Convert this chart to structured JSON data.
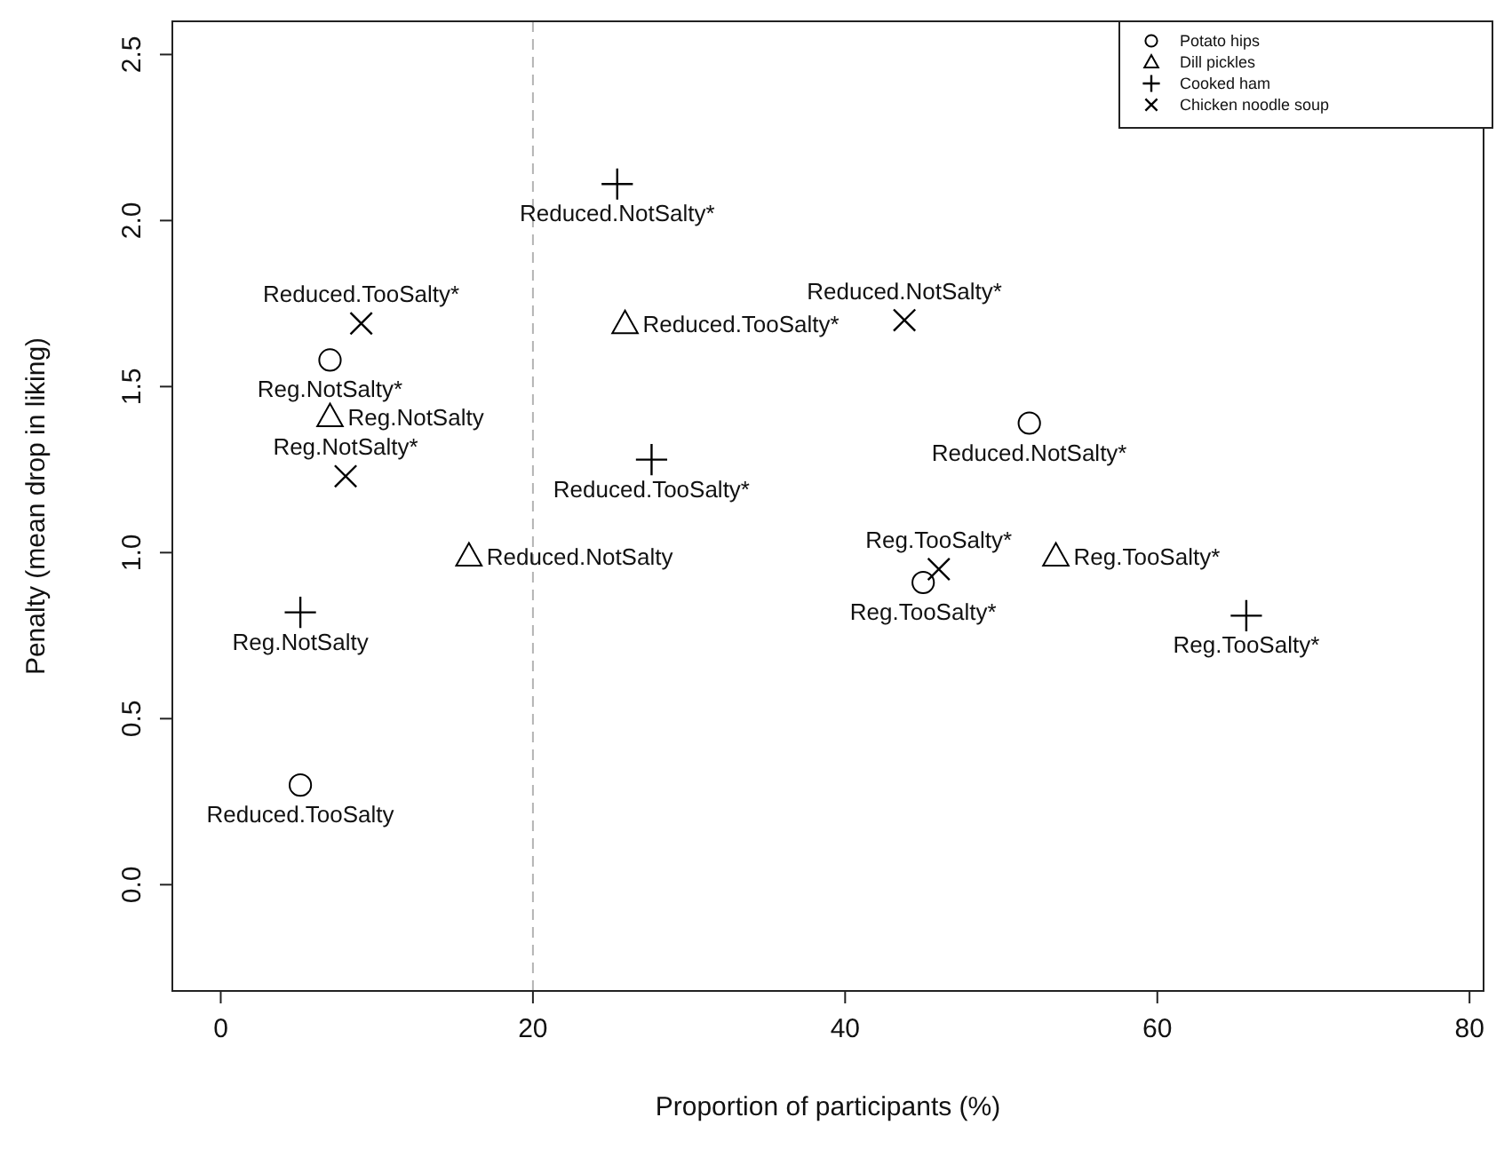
{
  "chart_data": {
    "type": "scatter",
    "xlabel": "Proportion of participants (%)",
    "ylabel": "Penalty (mean drop in liking)",
    "xlim": [
      -3.1,
      80.9
    ],
    "ylim": [
      -0.32,
      2.6
    ],
    "xticks": [
      0,
      20,
      40,
      60,
      80
    ],
    "yticks": [
      {
        "value": 0,
        "label": "0.0"
      },
      {
        "value": 0.5,
        "label": "0.5"
      },
      {
        "value": 1,
        "label": "1.0"
      },
      {
        "value": 1.5,
        "label": "1.5"
      },
      {
        "value": 2,
        "label": "2.0"
      },
      {
        "value": 2.5,
        "label": "2.5"
      }
    ],
    "grid": false,
    "legend": "top right",
    "ref_lines": [
      {
        "axis": "x",
        "value": 20,
        "color": "#b4b4b4",
        "line_style": "dashed"
      }
    ],
    "series": [
      {
        "name": "Potato hips",
        "color": "#000000",
        "marker": "circle",
        "x": [
          7.0,
          5.1,
          51.8,
          45.0
        ],
        "values": [
          1.58,
          0.3,
          1.39,
          0.91
        ]
      },
      {
        "name": "Dill pickles",
        "color": "#000000",
        "marker": "triangle",
        "x": [
          7.0,
          15.9,
          25.9,
          53.5
        ],
        "values": [
          1.41,
          0.99,
          1.69,
          0.99
        ]
      },
      {
        "name": "Cooked ham",
        "color": "#000000",
        "marker": "cross",
        "x": [
          25.4,
          27.6,
          5.1,
          65.7
        ],
        "values": [
          2.11,
          1.28,
          0.82,
          0.81
        ]
      },
      {
        "name": "Chicken noodle soup",
        "color": "#000000",
        "marker": "x",
        "x": [
          9.0,
          8.0,
          43.8,
          46.0
        ],
        "values": [
          1.69,
          1.23,
          1.7,
          0.95
        ]
      }
    ],
    "annotations": [
      {
        "text": "Reg.NotSalty*",
        "x": 7.0,
        "y": 1.58
      },
      {
        "text": "Reduced.TooSalty",
        "x": 5.1,
        "y": 0.3
      },
      {
        "text": "Reduced.NotSalty*",
        "x": 51.8,
        "y": 1.39
      },
      {
        "text": "Reg.TooSalty*",
        "x": 45.0,
        "y": 0.91
      },
      {
        "text": "Reg.NotSalty",
        "x": 7.0,
        "y": 1.41
      },
      {
        "text": "Reduced.NotSalty",
        "x": 15.9,
        "y": 0.99
      },
      {
        "text": "Reduced.TooSalty*",
        "x": 25.9,
        "y": 1.69
      },
      {
        "text": "Reg.TooSalty*",
        "x": 53.5,
        "y": 0.99
      },
      {
        "text": "Reduced.NotSalty*",
        "x": 25.4,
        "y": 2.11
      },
      {
        "text": "Reduced.TooSalty*",
        "x": 27.6,
        "y": 1.28
      },
      {
        "text": "Reg.NotSalty",
        "x": 5.1,
        "y": 0.82
      },
      {
        "text": "Reg.TooSalty*",
        "x": 65.7,
        "y": 0.81
      },
      {
        "text": "Reduced.TooSalty*",
        "x": 9.0,
        "y": 1.69
      },
      {
        "text": "Reg.NotSalty*",
        "x": 8.0,
        "y": 1.23
      },
      {
        "text": "Reduced.NotSalty*",
        "x": 43.8,
        "y": 1.7
      },
      {
        "text": "Reg.TooSalty*",
        "x": 46.0,
        "y": 0.95
      }
    ]
  }
}
